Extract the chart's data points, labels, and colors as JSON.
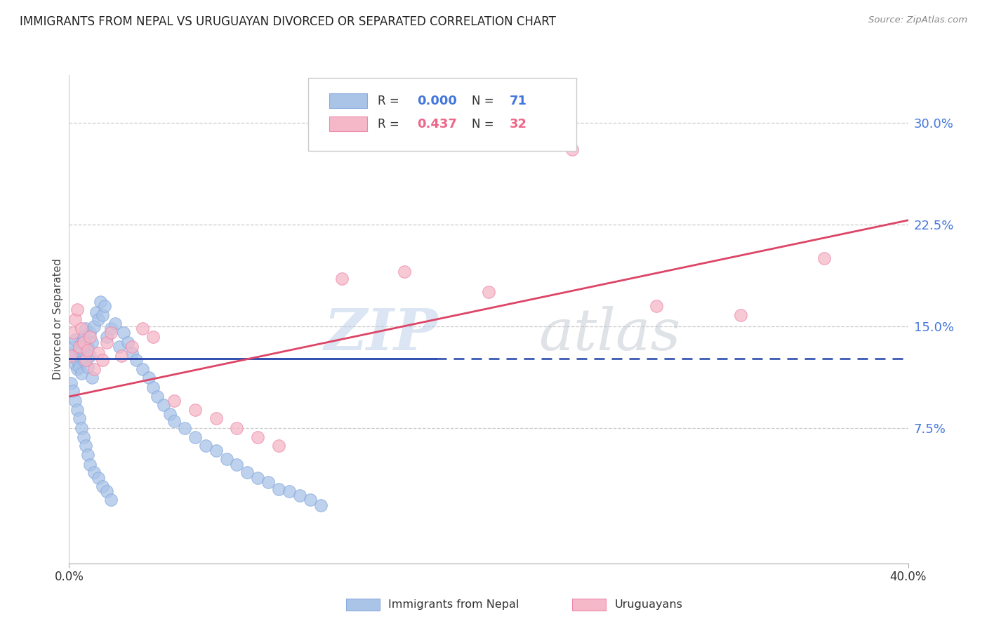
{
  "title": "IMMIGRANTS FROM NEPAL VS URUGUAYAN DIVORCED OR SEPARATED CORRELATION CHART",
  "source": "Source: ZipAtlas.com",
  "ylabel": "Divorced or Separated",
  "ytick_labels": [
    "30.0%",
    "22.5%",
    "15.0%",
    "7.5%"
  ],
  "ytick_values": [
    0.3,
    0.225,
    0.15,
    0.075
  ],
  "xlim": [
    0.0,
    0.4
  ],
  "ylim": [
    -0.025,
    0.335
  ],
  "legend_blue_R": "0.000",
  "legend_blue_N": "71",
  "legend_pink_R": "0.437",
  "legend_pink_N": "32",
  "blue_fill": "#aac4e8",
  "pink_fill": "#f5b8c8",
  "blue_edge": "#88aadd",
  "pink_edge": "#ee88aa",
  "blue_line_color": "#2244aa",
  "pink_line_color": "#dd4466",
  "blue_text_color": "#4477dd",
  "pink_text_color": "#ee6688",
  "n_blue": 71,
  "n_pink": 32,
  "blue_line_solid_end": 0.175,
  "blue_line_y": 0.126,
  "pink_line_x0": 0.0,
  "pink_line_y0": 0.098,
  "pink_line_x1": 0.4,
  "pink_line_y1": 0.228,
  "nepal_x": [
    0.001,
    0.002,
    0.002,
    0.003,
    0.003,
    0.004,
    0.004,
    0.005,
    0.005,
    0.006,
    0.006,
    0.007,
    0.007,
    0.008,
    0.008,
    0.009,
    0.009,
    0.01,
    0.01,
    0.011,
    0.011,
    0.012,
    0.013,
    0.014,
    0.015,
    0.016,
    0.017,
    0.018,
    0.02,
    0.022,
    0.024,
    0.026,
    0.028,
    0.03,
    0.032,
    0.035,
    0.038,
    0.04,
    0.042,
    0.045,
    0.048,
    0.05,
    0.055,
    0.06,
    0.065,
    0.07,
    0.075,
    0.08,
    0.085,
    0.09,
    0.095,
    0.1,
    0.105,
    0.11,
    0.115,
    0.12,
    0.001,
    0.002,
    0.003,
    0.004,
    0.005,
    0.006,
    0.007,
    0.008,
    0.009,
    0.01,
    0.012,
    0.014,
    0.016,
    0.018,
    0.02
  ],
  "nepal_y": [
    0.13,
    0.135,
    0.128,
    0.14,
    0.122,
    0.125,
    0.118,
    0.132,
    0.12,
    0.138,
    0.115,
    0.142,
    0.125,
    0.148,
    0.13,
    0.135,
    0.12,
    0.145,
    0.128,
    0.138,
    0.112,
    0.15,
    0.16,
    0.155,
    0.168,
    0.158,
    0.165,
    0.142,
    0.148,
    0.152,
    0.135,
    0.145,
    0.138,
    0.13,
    0.125,
    0.118,
    0.112,
    0.105,
    0.098,
    0.092,
    0.085,
    0.08,
    0.075,
    0.068,
    0.062,
    0.058,
    0.052,
    0.048,
    0.042,
    0.038,
    0.035,
    0.03,
    0.028,
    0.025,
    0.022,
    0.018,
    0.108,
    0.102,
    0.095,
    0.088,
    0.082,
    0.075,
    0.068,
    0.062,
    0.055,
    0.048,
    0.042,
    0.038,
    0.032,
    0.028,
    0.022
  ],
  "uruguay_x": [
    0.001,
    0.002,
    0.003,
    0.004,
    0.005,
    0.006,
    0.007,
    0.008,
    0.009,
    0.01,
    0.012,
    0.014,
    0.016,
    0.018,
    0.02,
    0.025,
    0.03,
    0.035,
    0.04,
    0.05,
    0.06,
    0.07,
    0.08,
    0.09,
    0.1,
    0.13,
    0.16,
    0.2,
    0.24,
    0.28,
    0.32,
    0.36
  ],
  "uruguay_y": [
    0.128,
    0.145,
    0.155,
    0.162,
    0.135,
    0.148,
    0.138,
    0.125,
    0.132,
    0.142,
    0.118,
    0.13,
    0.125,
    0.138,
    0.145,
    0.128,
    0.135,
    0.148,
    0.142,
    0.095,
    0.088,
    0.082,
    0.075,
    0.068,
    0.062,
    0.185,
    0.19,
    0.175,
    0.28,
    0.165,
    0.158,
    0.2
  ]
}
